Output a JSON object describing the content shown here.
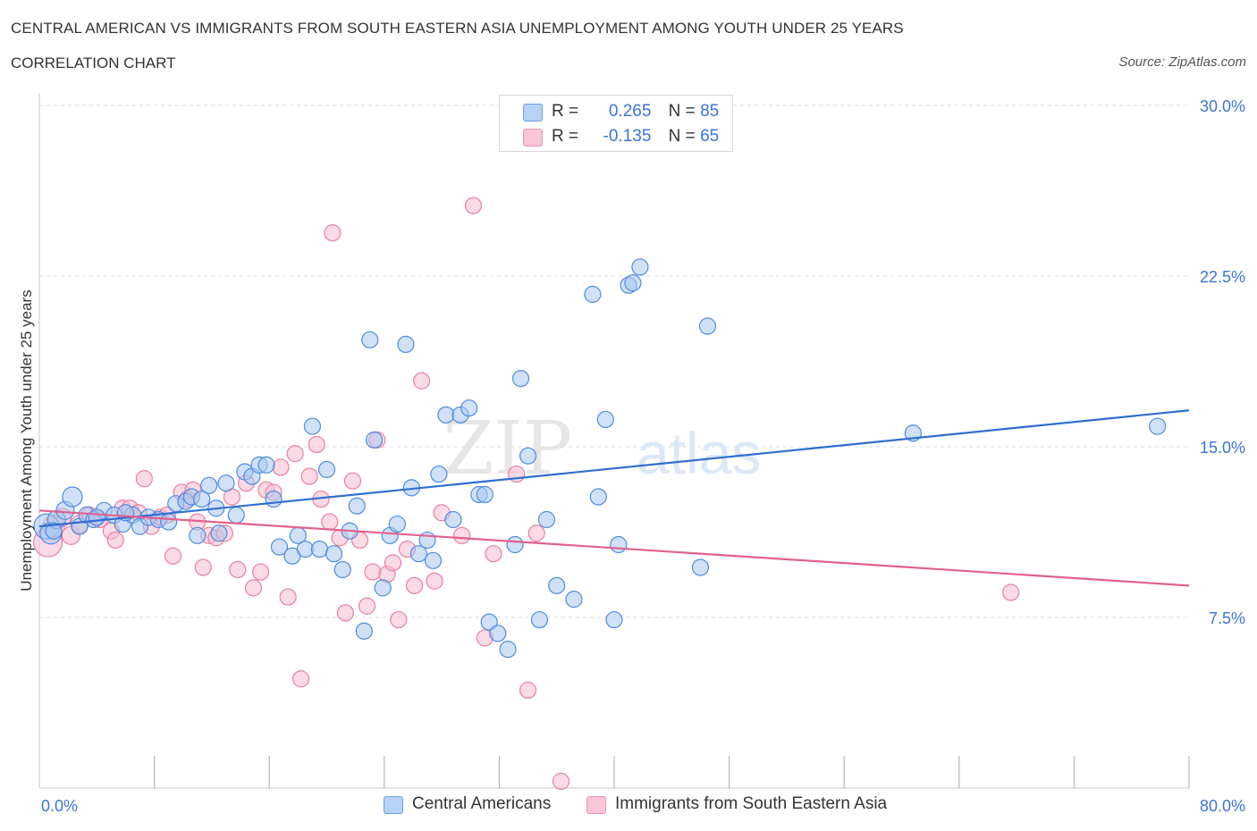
{
  "header": {
    "title": "CENTRAL AMERICAN VS IMMIGRANTS FROM SOUTH EASTERN ASIA UNEMPLOYMENT AMONG YOUTH UNDER 25 YEARS",
    "subtitle": "CORRELATION CHART",
    "source": "Source: ZipAtlas.com"
  },
  "legend": {
    "series1": {
      "r_label": "R =",
      "r_value": "0.265",
      "n_label": "N =",
      "n_value": "85"
    },
    "series2": {
      "r_label": "R =",
      "r_value": "-0.135",
      "n_label": "N =",
      "n_value": "65"
    }
  },
  "watermark": {
    "zip": "ZIP",
    "atlas": "atlas"
  },
  "chart_data": {
    "type": "scatter",
    "title": "CENTRAL AMERICAN VS IMMIGRANTS FROM SOUTH EASTERN ASIA UNEMPLOYMENT AMONG YOUTH UNDER 25 YEARS",
    "ylabel": "Unemployment Among Youth under 25 years",
    "xlabel": "",
    "xlim": [
      0,
      80
    ],
    "ylim": [
      0,
      30
    ],
    "x_tick_labels": [
      "0.0%",
      "80.0%"
    ],
    "y_ticks": [
      7.5,
      15.0,
      22.5,
      30.0
    ],
    "y_tick_labels": [
      "7.5%",
      "15.0%",
      "22.5%",
      "30.0%"
    ],
    "grid": true,
    "legend_position": "top-center and bottom",
    "colors": {
      "blue_fill": "#a9c8f0",
      "blue_stroke": "#4f8be0",
      "blue_line": "#2f6fd1",
      "pink_fill": "#f6bccd",
      "pink_stroke": "#e87fa0",
      "pink_line": "#e0618d",
      "tick_label": "#3b74d6",
      "grid": "#dcdcdc"
    },
    "series": [
      {
        "name": "Central Americans",
        "trend": {
          "x": [
            0,
            80
          ],
          "y": [
            11.5,
            16.6
          ]
        },
        "points": [
          [
            0.5,
            11.5,
            14
          ],
          [
            0.8,
            11.2,
            12
          ],
          [
            1.2,
            11.8,
            10
          ],
          [
            1.8,
            12.2,
            10
          ],
          [
            2.3,
            12.8,
            11
          ],
          [
            2.8,
            11.5,
            9
          ],
          [
            3.3,
            12.0,
            9
          ],
          [
            3.8,
            11.8,
            9
          ],
          [
            4.5,
            12.2,
            9
          ],
          [
            5.2,
            12.0,
            9
          ],
          [
            5.8,
            11.6,
            9
          ],
          [
            6.5,
            12.0,
            9
          ],
          [
            7.0,
            11.5,
            9
          ],
          [
            7.6,
            11.9,
            9
          ],
          [
            8.3,
            11.8,
            9
          ],
          [
            9.5,
            12.5,
            9
          ],
          [
            10.2,
            12.6,
            9
          ],
          [
            10.6,
            12.8,
            9
          ],
          [
            11.3,
            12.7,
            9
          ],
          [
            11.8,
            13.3,
            9
          ],
          [
            12.3,
            12.3,
            9
          ],
          [
            12.5,
            11.2,
            9
          ],
          [
            13.0,
            13.4,
            9
          ],
          [
            13.7,
            12.0,
            9
          ],
          [
            14.3,
            13.9,
            9
          ],
          [
            14.8,
            13.7,
            9
          ],
          [
            15.3,
            14.2,
            9
          ],
          [
            15.8,
            14.2,
            9
          ],
          [
            16.3,
            12.7,
            9
          ],
          [
            16.7,
            10.6,
            9
          ],
          [
            17.6,
            10.2,
            9
          ],
          [
            18.0,
            11.1,
            9
          ],
          [
            18.5,
            10.5,
            9
          ],
          [
            19.0,
            15.9,
            9
          ],
          [
            19.5,
            10.5,
            9
          ],
          [
            20.0,
            14.0,
            9
          ],
          [
            20.5,
            10.3,
            9
          ],
          [
            21.1,
            9.6,
            9
          ],
          [
            21.6,
            11.3,
            9
          ],
          [
            22.1,
            12.4,
            9
          ],
          [
            22.6,
            6.9,
            9
          ],
          [
            23.0,
            19.7,
            9
          ],
          [
            23.3,
            15.3,
            9
          ],
          [
            23.9,
            8.8,
            9
          ],
          [
            24.4,
            11.1,
            9
          ],
          [
            24.9,
            11.6,
            9
          ],
          [
            25.5,
            19.5,
            9
          ],
          [
            25.9,
            13.2,
            9
          ],
          [
            26.4,
            10.3,
            9
          ],
          [
            27.0,
            10.9,
            9
          ],
          [
            27.4,
            10.0,
            9
          ],
          [
            27.8,
            13.8,
            9
          ],
          [
            28.3,
            16.4,
            9
          ],
          [
            28.8,
            11.8,
            9
          ],
          [
            29.3,
            16.4,
            9
          ],
          [
            29.9,
            16.7,
            9
          ],
          [
            30.6,
            12.9,
            9
          ],
          [
            31.0,
            12.9,
            9
          ],
          [
            31.3,
            7.3,
            9
          ],
          [
            31.9,
            6.8,
            9
          ],
          [
            32.6,
            6.1,
            9
          ],
          [
            33.1,
            10.7,
            9
          ],
          [
            33.5,
            18.0,
            9
          ],
          [
            34.0,
            14.6,
            9
          ],
          [
            34.8,
            7.4,
            9
          ],
          [
            35.3,
            11.8,
            9
          ],
          [
            36.0,
            8.9,
            9
          ],
          [
            37.2,
            8.3,
            9
          ],
          [
            38.5,
            21.7,
            9
          ],
          [
            38.9,
            12.8,
            9
          ],
          [
            39.4,
            16.2,
            9
          ],
          [
            40.0,
            7.4,
            9
          ],
          [
            40.3,
            10.7,
            9
          ],
          [
            41.0,
            22.1,
            9
          ],
          [
            41.3,
            22.2,
            9
          ],
          [
            41.8,
            22.9,
            9
          ],
          [
            46.0,
            9.7,
            9
          ],
          [
            46.5,
            20.3,
            9
          ],
          [
            60.8,
            15.6,
            9
          ],
          [
            77.8,
            15.9,
            9
          ],
          [
            1.0,
            11.3,
            9
          ],
          [
            4.0,
            11.9,
            9
          ],
          [
            6.0,
            12.1,
            9
          ],
          [
            9.0,
            11.7,
            9
          ],
          [
            11.0,
            11.1,
            9
          ]
        ]
      },
      {
        "name": "Immigrants from South Eastern Asia",
        "trend": {
          "x": [
            0,
            80
          ],
          "y": [
            12.2,
            8.9
          ]
        },
        "points": [
          [
            0.6,
            10.8,
            16
          ],
          [
            1.0,
            11.5,
            12
          ],
          [
            1.6,
            11.9,
            10
          ],
          [
            2.2,
            11.1,
            10
          ],
          [
            2.8,
            11.6,
            10
          ],
          [
            3.5,
            12.0,
            9
          ],
          [
            4.2,
            11.8,
            9
          ],
          [
            5.0,
            11.3,
            9
          ],
          [
            5.3,
            10.9,
            9
          ],
          [
            5.8,
            12.3,
            9
          ],
          [
            6.3,
            12.3,
            9
          ],
          [
            6.9,
            12.1,
            9
          ],
          [
            7.3,
            13.6,
            9
          ],
          [
            7.8,
            11.5,
            9
          ],
          [
            8.4,
            11.9,
            9
          ],
          [
            8.9,
            12.0,
            9
          ],
          [
            9.3,
            10.2,
            9
          ],
          [
            9.9,
            13.0,
            9
          ],
          [
            10.3,
            12.7,
            9
          ],
          [
            10.7,
            13.1,
            9
          ],
          [
            11.0,
            11.7,
            9
          ],
          [
            11.4,
            9.7,
            9
          ],
          [
            11.8,
            11.1,
            9
          ],
          [
            12.3,
            11.0,
            9
          ],
          [
            12.9,
            11.2,
            9
          ],
          [
            13.4,
            12.8,
            9
          ],
          [
            13.8,
            9.6,
            9
          ],
          [
            14.4,
            13.4,
            9
          ],
          [
            14.9,
            8.8,
            9
          ],
          [
            15.4,
            9.5,
            9
          ],
          [
            15.8,
            13.1,
            9
          ],
          [
            16.3,
            13.0,
            9
          ],
          [
            16.8,
            14.1,
            9
          ],
          [
            17.3,
            8.4,
            9
          ],
          [
            17.8,
            14.7,
            9
          ],
          [
            18.2,
            4.8,
            9
          ],
          [
            18.8,
            13.7,
            9
          ],
          [
            19.3,
            15.1,
            9
          ],
          [
            19.6,
            12.7,
            9
          ],
          [
            20.2,
            11.7,
            9
          ],
          [
            20.4,
            24.4,
            9
          ],
          [
            20.9,
            11.0,
            9
          ],
          [
            21.3,
            7.7,
            9
          ],
          [
            21.8,
            13.5,
            9
          ],
          [
            22.3,
            10.9,
            9
          ],
          [
            22.8,
            8.0,
            9
          ],
          [
            23.2,
            9.5,
            9
          ],
          [
            23.5,
            15.3,
            9
          ],
          [
            24.2,
            9.4,
            9
          ],
          [
            24.6,
            9.9,
            9
          ],
          [
            25.0,
            7.4,
            9
          ],
          [
            25.6,
            10.5,
            9
          ],
          [
            26.1,
            8.9,
            9
          ],
          [
            26.6,
            17.9,
            9
          ],
          [
            27.5,
            9.1,
            9
          ],
          [
            28.0,
            12.1,
            9
          ],
          [
            29.4,
            11.1,
            9
          ],
          [
            30.2,
            25.6,
            9
          ],
          [
            31.0,
            6.6,
            9
          ],
          [
            31.6,
            10.3,
            9
          ],
          [
            33.2,
            13.8,
            9
          ],
          [
            34.0,
            4.3,
            9
          ],
          [
            34.6,
            11.2,
            9
          ],
          [
            36.3,
            0.3,
            9
          ],
          [
            67.6,
            8.6,
            9
          ]
        ]
      }
    ]
  },
  "bottom_legend": {
    "item1": "Central Americans",
    "item2": "Immigrants from South Eastern Asia"
  }
}
